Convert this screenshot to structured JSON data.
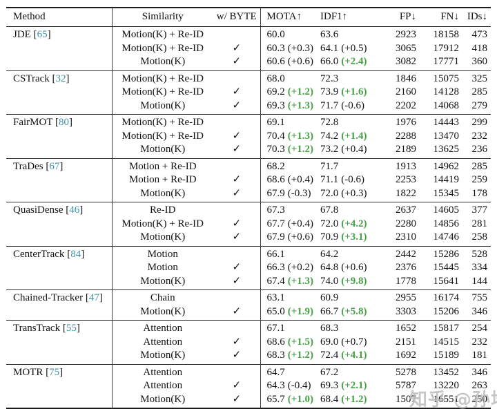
{
  "columns": [
    {
      "label": "Method"
    },
    {
      "label": "Similarity"
    },
    {
      "label": "w/ BYTE"
    },
    {
      "label": "MOTA↑"
    },
    {
      "label": "IDF1↑"
    },
    {
      "label": "FP↓"
    },
    {
      "label": "FN↓"
    },
    {
      "label": "IDs↓"
    }
  ],
  "glyphs": {
    "check": "✓",
    "bracket_open": "[",
    "bracket_close": "]"
  },
  "colors": {
    "citation": "#3e92a0",
    "delta_green": "#46a046",
    "rule": "#1c1c1c",
    "watermark": "#b9b9b9"
  },
  "watermark": {
    "text": "知乎 @孙培泽"
  },
  "groups": [
    {
      "method": "JDE",
      "cite": "65",
      "rows": [
        {
          "sim": "Motion(K) + Re-ID",
          "byte": false,
          "mota": {
            "v": "60.0",
            "d": "",
            "g": false
          },
          "idf1": {
            "v": "63.6",
            "d": "",
            "g": false
          },
          "fp": "2923",
          "fn": "18158",
          "ids": "473"
        },
        {
          "sim": "Motion(K) + Re-ID",
          "byte": true,
          "mota": {
            "v": "60.3",
            "d": "(+0.3)",
            "g": false
          },
          "idf1": {
            "v": "64.1",
            "d": "(+0.5)",
            "g": false
          },
          "fp": "3065",
          "fn": "17912",
          "ids": "418"
        },
        {
          "sim": "Motion(K)",
          "byte": true,
          "mota": {
            "v": "60.6",
            "d": "(+0.6)",
            "g": false
          },
          "idf1": {
            "v": "66.0",
            "d": "(+2.4)",
            "g": true
          },
          "fp": "3082",
          "fn": "17771",
          "ids": "360"
        }
      ]
    },
    {
      "method": "CSTrack",
      "cite": "32",
      "rows": [
        {
          "sim": "Motion(K) + Re-ID",
          "byte": false,
          "mota": {
            "v": "68.0",
            "d": "",
            "g": false
          },
          "idf1": {
            "v": "72.3",
            "d": "",
            "g": false
          },
          "fp": "1846",
          "fn": "15075",
          "ids": "325"
        },
        {
          "sim": "Motion(K) + Re-ID",
          "byte": true,
          "mota": {
            "v": "69.2",
            "d": "(+1.2)",
            "g": true
          },
          "idf1": {
            "v": "73.9",
            "d": "(+1.6)",
            "g": true
          },
          "fp": "2160",
          "fn": "14128",
          "ids": "285"
        },
        {
          "sim": "Motion(K)",
          "byte": true,
          "mota": {
            "v": "69.3",
            "d": "(+1.3)",
            "g": true
          },
          "idf1": {
            "v": "71.7",
            "d": "(-0.6)",
            "g": false
          },
          "fp": "2202",
          "fn": "14068",
          "ids": "279"
        }
      ]
    },
    {
      "method": "FairMOT",
      "cite": "80",
      "rows": [
        {
          "sim": "Motion(K) + Re-ID",
          "byte": false,
          "mota": {
            "v": "69.1",
            "d": "",
            "g": false
          },
          "idf1": {
            "v": "72.8",
            "d": "",
            "g": false
          },
          "fp": "1976",
          "fn": "14443",
          "ids": "299"
        },
        {
          "sim": "Motion(K) + Re-ID",
          "byte": true,
          "mota": {
            "v": "70.4",
            "d": "(+1.3)",
            "g": true
          },
          "idf1": {
            "v": "74.2",
            "d": "(+1.4)",
            "g": true
          },
          "fp": "2288",
          "fn": "13470",
          "ids": "232"
        },
        {
          "sim": "Motion(K)",
          "byte": true,
          "mota": {
            "v": "70.3",
            "d": "(+1.2)",
            "g": true
          },
          "idf1": {
            "v": "73.2",
            "d": "(+0.4)",
            "g": false
          },
          "fp": "2189",
          "fn": "13625",
          "ids": "236"
        }
      ]
    },
    {
      "method": "TraDes",
      "cite": "67",
      "rows": [
        {
          "sim": "Motion + Re-ID",
          "byte": false,
          "mota": {
            "v": "68.2",
            "d": "",
            "g": false
          },
          "idf1": {
            "v": "71.7",
            "d": "",
            "g": false
          },
          "fp": "1913",
          "fn": "14962",
          "ids": "285"
        },
        {
          "sim": "Motion + Re-ID",
          "byte": true,
          "mota": {
            "v": "68.6",
            "d": "(+0.4)",
            "g": false
          },
          "idf1": {
            "v": "71.1",
            "d": "(-0.6)",
            "g": false
          },
          "fp": "2253",
          "fn": "14419",
          "ids": "259"
        },
        {
          "sim": "Motion(K)",
          "byte": true,
          "mota": {
            "v": "67.9",
            "d": "(-0.3)",
            "g": false
          },
          "idf1": {
            "v": "72.0",
            "d": "(+0.3)",
            "g": false
          },
          "fp": "1822",
          "fn": "15345",
          "ids": "178"
        }
      ]
    },
    {
      "method": "QuasiDense",
      "cite": "46",
      "rows": [
        {
          "sim": "Re-ID",
          "byte": false,
          "mota": {
            "v": "67.3",
            "d": "",
            "g": false
          },
          "idf1": {
            "v": "67.8",
            "d": "",
            "g": false
          },
          "fp": "2637",
          "fn": "14605",
          "ids": "377"
        },
        {
          "sim": "Motion(K) + Re-ID",
          "byte": true,
          "mota": {
            "v": "67.7",
            "d": "(+0.4)",
            "g": false
          },
          "idf1": {
            "v": "72.0",
            "d": "(+4.2)",
            "g": true
          },
          "fp": "2280",
          "fn": "14856",
          "ids": "281"
        },
        {
          "sim": "Motion(K)",
          "byte": true,
          "mota": {
            "v": "67.9",
            "d": "(+0.6)",
            "g": false
          },
          "idf1": {
            "v": "70.9",
            "d": "(+3.1)",
            "g": true
          },
          "fp": "2310",
          "fn": "14746",
          "ids": "258"
        }
      ]
    },
    {
      "method": "CenterTrack",
      "cite": "84",
      "rows": [
        {
          "sim": "Motion",
          "byte": false,
          "mota": {
            "v": "66.1",
            "d": "",
            "g": false
          },
          "idf1": {
            "v": "64.2",
            "d": "",
            "g": false
          },
          "fp": "2442",
          "fn": "15286",
          "ids": "528"
        },
        {
          "sim": "Motion",
          "byte": true,
          "mota": {
            "v": "66.3",
            "d": "(+0.2)",
            "g": false
          },
          "idf1": {
            "v": "64.8",
            "d": "(+0.6)",
            "g": false
          },
          "fp": "2376",
          "fn": "15445",
          "ids": "334"
        },
        {
          "sim": "Motion(K)",
          "byte": true,
          "mota": {
            "v": "67.4",
            "d": "(+1.3)",
            "g": true
          },
          "idf1": {
            "v": "74.0",
            "d": "(+9.8)",
            "g": true
          },
          "fp": "1778",
          "fn": "15641",
          "ids": "144"
        }
      ]
    },
    {
      "method": "Chained-Tracker",
      "cite": "47",
      "rows": [
        {
          "sim": "Chain",
          "byte": false,
          "mota": {
            "v": "63.1",
            "d": "",
            "g": false
          },
          "idf1": {
            "v": "60.9",
            "d": "",
            "g": false
          },
          "fp": "2955",
          "fn": "16174",
          "ids": "755"
        },
        {
          "sim": "Motion(K)",
          "byte": true,
          "mota": {
            "v": "65.0",
            "d": "(+1.9)",
            "g": true
          },
          "idf1": {
            "v": "66.7",
            "d": "(+5.8)",
            "g": true
          },
          "fp": "3303",
          "fn": "15206",
          "ids": "346"
        }
      ]
    },
    {
      "method": "TransTrack",
      "cite": "55",
      "rows": [
        {
          "sim": "Attention",
          "byte": false,
          "mota": {
            "v": "67.1",
            "d": "",
            "g": false
          },
          "idf1": {
            "v": "68.3",
            "d": "",
            "g": false
          },
          "fp": "1652",
          "fn": "15817",
          "ids": "254"
        },
        {
          "sim": "Attention",
          "byte": true,
          "mota": {
            "v": "68.6",
            "d": "(+1.5)",
            "g": true
          },
          "idf1": {
            "v": "69.0",
            "d": "(+0.7)",
            "g": false
          },
          "fp": "2151",
          "fn": "14515",
          "ids": "232"
        },
        {
          "sim": "Motion(K)",
          "byte": true,
          "mota": {
            "v": "68.3",
            "d": "(+1.2)",
            "g": true
          },
          "idf1": {
            "v": "72.4",
            "d": "(+4.1)",
            "g": true
          },
          "fp": "1692",
          "fn": "15189",
          "ids": "181"
        }
      ]
    },
    {
      "method": "MOTR",
      "cite": "75",
      "rows": [
        {
          "sim": "Attention",
          "byte": false,
          "mota": {
            "v": "64.7",
            "d": "",
            "g": false
          },
          "idf1": {
            "v": "67.2",
            "d": "",
            "g": false
          },
          "fp": "5278",
          "fn": "13452",
          "ids": "346"
        },
        {
          "sim": "Attention",
          "byte": true,
          "mota": {
            "v": "64.3",
            "d": "(-0.4)",
            "g": false
          },
          "idf1": {
            "v": "69.3",
            "d": "(+2.1)",
            "g": true
          },
          "fp": "5787",
          "fn": "13220",
          "ids": "263"
        },
        {
          "sim": "Motion(K)",
          "byte": true,
          "mota": {
            "v": "65.7",
            "d": "(+1.0)",
            "g": true
          },
          "idf1": {
            "v": "68.4",
            "d": "(+1.2)",
            "g": true
          },
          "fp": "1507",
          "fn": "16551",
          "ids": "250"
        }
      ]
    }
  ]
}
